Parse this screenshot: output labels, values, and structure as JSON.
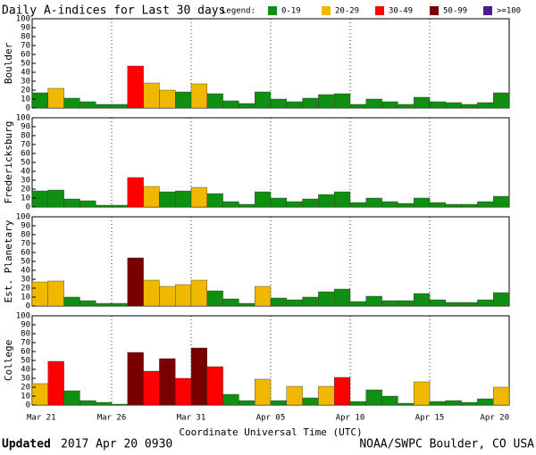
{
  "chart_data": {
    "type": "bar",
    "title": "Daily A-indices for Last 30 days",
    "legend_title": "Legend:",
    "legend": [
      {
        "name": "0-19",
        "color": "#0f9010"
      },
      {
        "name": "20-29",
        "color": "#f0b800"
      },
      {
        "name": "30-49",
        "color": "#ff0000"
      },
      {
        "name": "50-99",
        "color": "#7a0000"
      },
      {
        "name": ">=100",
        "color": "#4b1a8c"
      }
    ],
    "xlabel": "Coordinate Universal Time (UTC)",
    "xlim": [
      0,
      30
    ],
    "xticks": [
      {
        "value": 0,
        "label": "Mar 21"
      },
      {
        "value": 5,
        "label": "Mar 26"
      },
      {
        "value": 10,
        "label": "Mar 31"
      },
      {
        "value": 15,
        "label": "Apr 05"
      },
      {
        "value": 20,
        "label": "Apr 10"
      },
      {
        "value": 25,
        "label": "Apr 15"
      },
      {
        "value": 30,
        "label": "Apr 20"
      }
    ],
    "ylim": [
      0,
      100
    ],
    "yticks": [
      0,
      10,
      20,
      30,
      40,
      50,
      60,
      70,
      80,
      90,
      100
    ],
    "grid": true,
    "series": [
      {
        "name": "Boulder",
        "values": [
          17,
          22,
          11,
          7,
          4,
          4,
          47,
          28,
          20,
          18,
          27,
          16,
          8,
          5,
          18,
          10,
          7,
          11,
          15,
          16,
          4,
          10,
          7,
          4,
          12,
          7,
          6,
          4,
          6,
          17
        ]
      },
      {
        "name": "Fredericksburg",
        "values": [
          18,
          19,
          9,
          7,
          2,
          2,
          33,
          23,
          17,
          18,
          22,
          15,
          6,
          3,
          17,
          10,
          6,
          9,
          14,
          17,
          5,
          10,
          6,
          4,
          10,
          5,
          3,
          3,
          6,
          12
        ]
      },
      {
        "name": "Est. Planetary",
        "values": [
          27,
          28,
          10,
          6,
          3,
          3,
          54,
          29,
          22,
          24,
          29,
          17,
          8,
          3,
          22,
          9,
          7,
          10,
          16,
          19,
          5,
          11,
          6,
          6,
          14,
          7,
          4,
          4,
          7,
          15
        ]
      },
      {
        "name": "College",
        "values": [
          24,
          49,
          16,
          5,
          3,
          1,
          59,
          38,
          52,
          30,
          64,
          43,
          12,
          5,
          29,
          5,
          21,
          8,
          21,
          31,
          4,
          17,
          10,
          2,
          26,
          4,
          5,
          3,
          7,
          20
        ]
      }
    ],
    "footer_bold": "Updated",
    "footer_time": "2017 Apr 20 0930",
    "footer_source": "NOAA/SWPC Boulder, CO USA"
  }
}
